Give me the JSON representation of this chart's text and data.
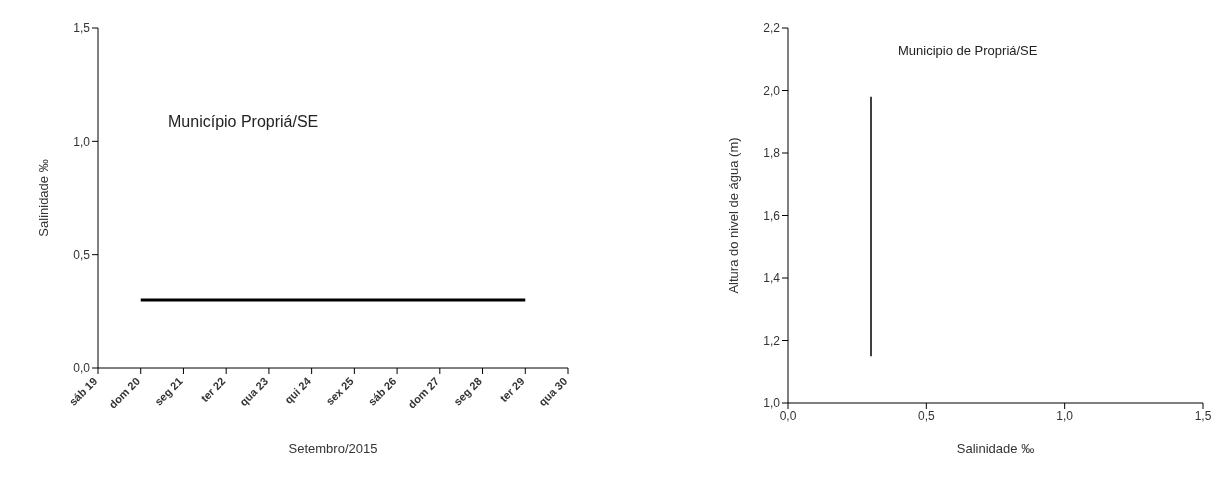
{
  "chart_data": [
    {
      "type": "line",
      "ylabel": "Salinidade ‰",
      "xlabel": "Setembro/2015",
      "annotations": [
        "Município Propriá/SE"
      ],
      "categories": [
        "sáb 19",
        "dom 20",
        "seg 21",
        "ter 22",
        "qua 23",
        "qui 24",
        "sex 25",
        "sáb 26",
        "dom 27",
        "seg 28",
        "ter 29",
        "qua 30"
      ],
      "series": [
        {
          "color": "#000000",
          "values": [
            null,
            0.3,
            0.3,
            0.3,
            0.3,
            0.3,
            0.3,
            0.3,
            0.3,
            0.3,
            0.3,
            null
          ]
        }
      ],
      "ylim": [
        0,
        1.5
      ],
      "yticks": [
        {
          "value": 0,
          "label": "0,0"
        },
        {
          "value": 0.5,
          "label": "0,5"
        },
        {
          "value": 1,
          "label": "1,0"
        },
        {
          "value": 1.5,
          "label": "1,5"
        }
      ]
    },
    {
      "type": "line",
      "ylabel": "Altura do nivel de água (m)",
      "xlabel": "Salinidade ‰",
      "annotations": [
        "Municipio de Propriá/SE"
      ],
      "x": [
        0.3,
        0.3
      ],
      "series": [
        {
          "color": "#000000",
          "values": [
            1.15,
            1.98
          ]
        }
      ],
      "xlim": [
        0,
        1.5
      ],
      "xticks": [
        {
          "value": 0,
          "label": "0,0"
        },
        {
          "value": 0.5,
          "label": "0,5"
        },
        {
          "value": 1,
          "label": "1,0"
        },
        {
          "value": 1.5,
          "label": "1,5"
        }
      ],
      "ylim": [
        1,
        2.2
      ],
      "yticks": [
        {
          "value": 1,
          "label": "1,0"
        },
        {
          "value": 1.2,
          "label": "1,2"
        },
        {
          "value": 1.4,
          "label": "1,4"
        },
        {
          "value": 1.6,
          "label": "1,6"
        },
        {
          "value": 1.8,
          "label": "1,8"
        },
        {
          "value": 2,
          "label": "2,0"
        },
        {
          "value": 2.2,
          "label": "2,2"
        }
      ]
    }
  ]
}
